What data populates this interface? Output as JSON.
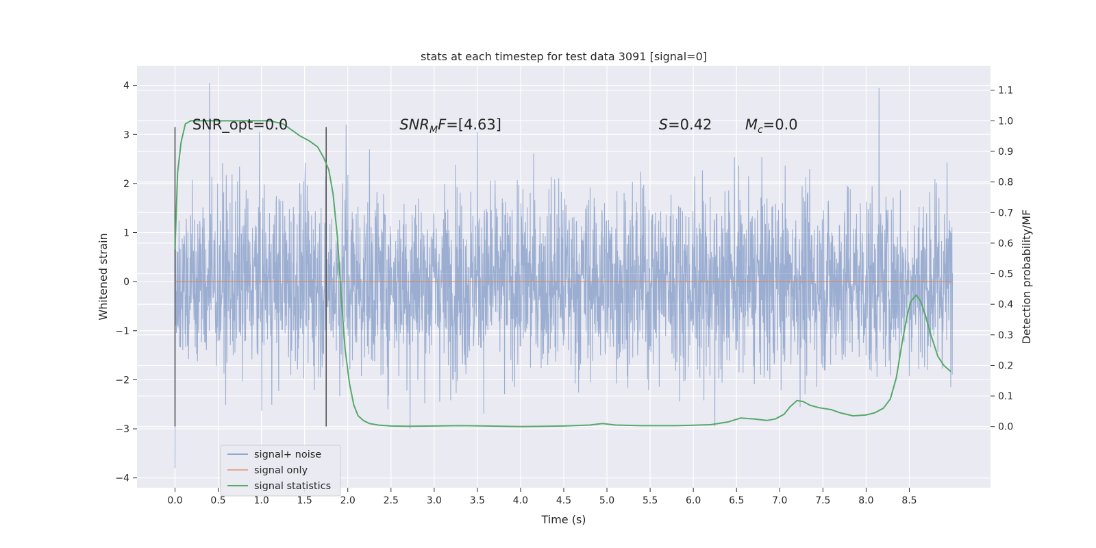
{
  "chart_data": {
    "type": "line",
    "title": "stats at each timestep for test data 3091 [signal=0]",
    "xlabel": "Time (s)",
    "ylabel": "Whitened strain",
    "y2label": "Detection probability/MF",
    "xlim": [
      -0.44,
      9.44
    ],
    "ylim": [
      -4.2,
      4.4
    ],
    "y2lim": [
      -0.2,
      1.18
    ],
    "xticks": [
      0.0,
      0.5,
      1.0,
      1.5,
      2.0,
      2.5,
      3.0,
      3.5,
      4.0,
      4.5,
      5.0,
      5.5,
      6.0,
      6.5,
      7.0,
      7.5,
      8.0,
      8.5
    ],
    "xtick_labels": [
      "0.0",
      "0.5",
      "1.0",
      "1.5",
      "2.0",
      "2.5",
      "3.0",
      "3.5",
      "4.0",
      "4.5",
      "5.0",
      "5.5",
      "6.0",
      "6.5",
      "7.0",
      "7.5",
      "8.0",
      "8.5"
    ],
    "yticks": [
      -4,
      -3,
      -2,
      -1,
      0,
      1,
      2,
      3,
      4
    ],
    "ytick_labels": [
      "−4",
      "−3",
      "−2",
      "−1",
      "0",
      "1",
      "2",
      "3",
      "4"
    ],
    "y2ticks": [
      0.0,
      0.1,
      0.2,
      0.3,
      0.4,
      0.5,
      0.6,
      0.7,
      0.8,
      0.9,
      1.0,
      1.1
    ],
    "y2tick_labels": [
      "0.0",
      "0.1",
      "0.2",
      "0.3",
      "0.4",
      "0.5",
      "0.6",
      "0.7",
      "0.8",
      "0.9",
      "1.0",
      "1.1"
    ],
    "vlines": [
      {
        "x": 0.0,
        "ymin": -2.95,
        "ymax": 3.15
      },
      {
        "x": 1.75,
        "ymin": -2.95,
        "ymax": 3.15
      }
    ],
    "annotations": [
      {
        "text": "SNR_opt=0.0",
        "x": 0.2,
        "y": 3.2
      },
      {
        "text": "SNR",
        "sub": "M",
        "tail": "F=[4.63]",
        "italic": true,
        "x": 2.6,
        "y": 3.2
      },
      {
        "text": "S",
        "tail": "=0.42",
        "italic": true,
        "x": 5.6,
        "y": 3.2
      },
      {
        "text": "M",
        "sub": "c",
        "tail": "=0.0",
        "italic": true,
        "x": 6.6,
        "y": 3.2
      }
    ],
    "series": [
      {
        "name": "signal+ noise",
        "axis": "left",
        "color": "#4c72b0",
        "opacity": 0.5,
        "kind": "noise",
        "x_range": [
          0.0,
          9.0
        ],
        "samples": 2700,
        "sigma": 0.95,
        "spikes": [
          [
            0.4,
            4.05
          ],
          [
            0.0,
            -3.8
          ],
          [
            8.15,
            3.95
          ],
          [
            1.98,
            3.2
          ],
          [
            3.5,
            3.05
          ],
          [
            2.72,
            -3.0
          ],
          [
            6.25,
            -2.95
          ]
        ]
      },
      {
        "name": "signal only",
        "axis": "left",
        "color": "#dd8452",
        "x": [
          0.0,
          9.0
        ],
        "y": [
          0.0,
          0.0
        ]
      },
      {
        "name": "signal statistics",
        "axis": "right",
        "color": "#55a868",
        "x": [
          0.0,
          0.03,
          0.07,
          0.12,
          0.18,
          0.25,
          0.35,
          0.5,
          0.7,
          0.9,
          1.1,
          1.25,
          1.35,
          1.45,
          1.55,
          1.65,
          1.72,
          1.78,
          1.83,
          1.88,
          1.93,
          1.97,
          2.02,
          2.07,
          2.12,
          2.18,
          2.25,
          2.35,
          2.5,
          2.7,
          3.0,
          3.3,
          3.6,
          4.0,
          4.5,
          4.8,
          4.95,
          5.1,
          5.4,
          5.8,
          6.2,
          6.4,
          6.55,
          6.7,
          6.85,
          6.95,
          7.05,
          7.12,
          7.2,
          7.27,
          7.35,
          7.45,
          7.6,
          7.7,
          7.85,
          8.0,
          8.1,
          8.2,
          8.28,
          8.35,
          8.42,
          8.48,
          8.52,
          8.58,
          8.63,
          8.68,
          8.75,
          8.83,
          8.9,
          8.98
        ],
        "y": [
          0.58,
          0.83,
          0.93,
          0.99,
          1.0,
          1.0,
          1.0,
          1.0,
          1.0,
          1.0,
          1.0,
          0.99,
          0.97,
          0.95,
          0.935,
          0.915,
          0.88,
          0.84,
          0.76,
          0.62,
          0.4,
          0.25,
          0.14,
          0.07,
          0.035,
          0.02,
          0.01,
          0.005,
          0.002,
          0.001,
          0.002,
          0.003,
          0.002,
          0.0,
          0.002,
          0.005,
          0.01,
          0.005,
          0.003,
          0.003,
          0.006,
          0.015,
          0.028,
          0.025,
          0.02,
          0.025,
          0.04,
          0.065,
          0.085,
          0.082,
          0.07,
          0.062,
          0.055,
          0.045,
          0.035,
          0.038,
          0.045,
          0.06,
          0.09,
          0.16,
          0.28,
          0.37,
          0.41,
          0.43,
          0.41,
          0.37,
          0.3,
          0.23,
          0.2,
          0.18
        ]
      }
    ],
    "legend": {
      "position": "lower-left",
      "entries": [
        "signal+ noise",
        "signal only",
        "signal statistics"
      ]
    }
  }
}
